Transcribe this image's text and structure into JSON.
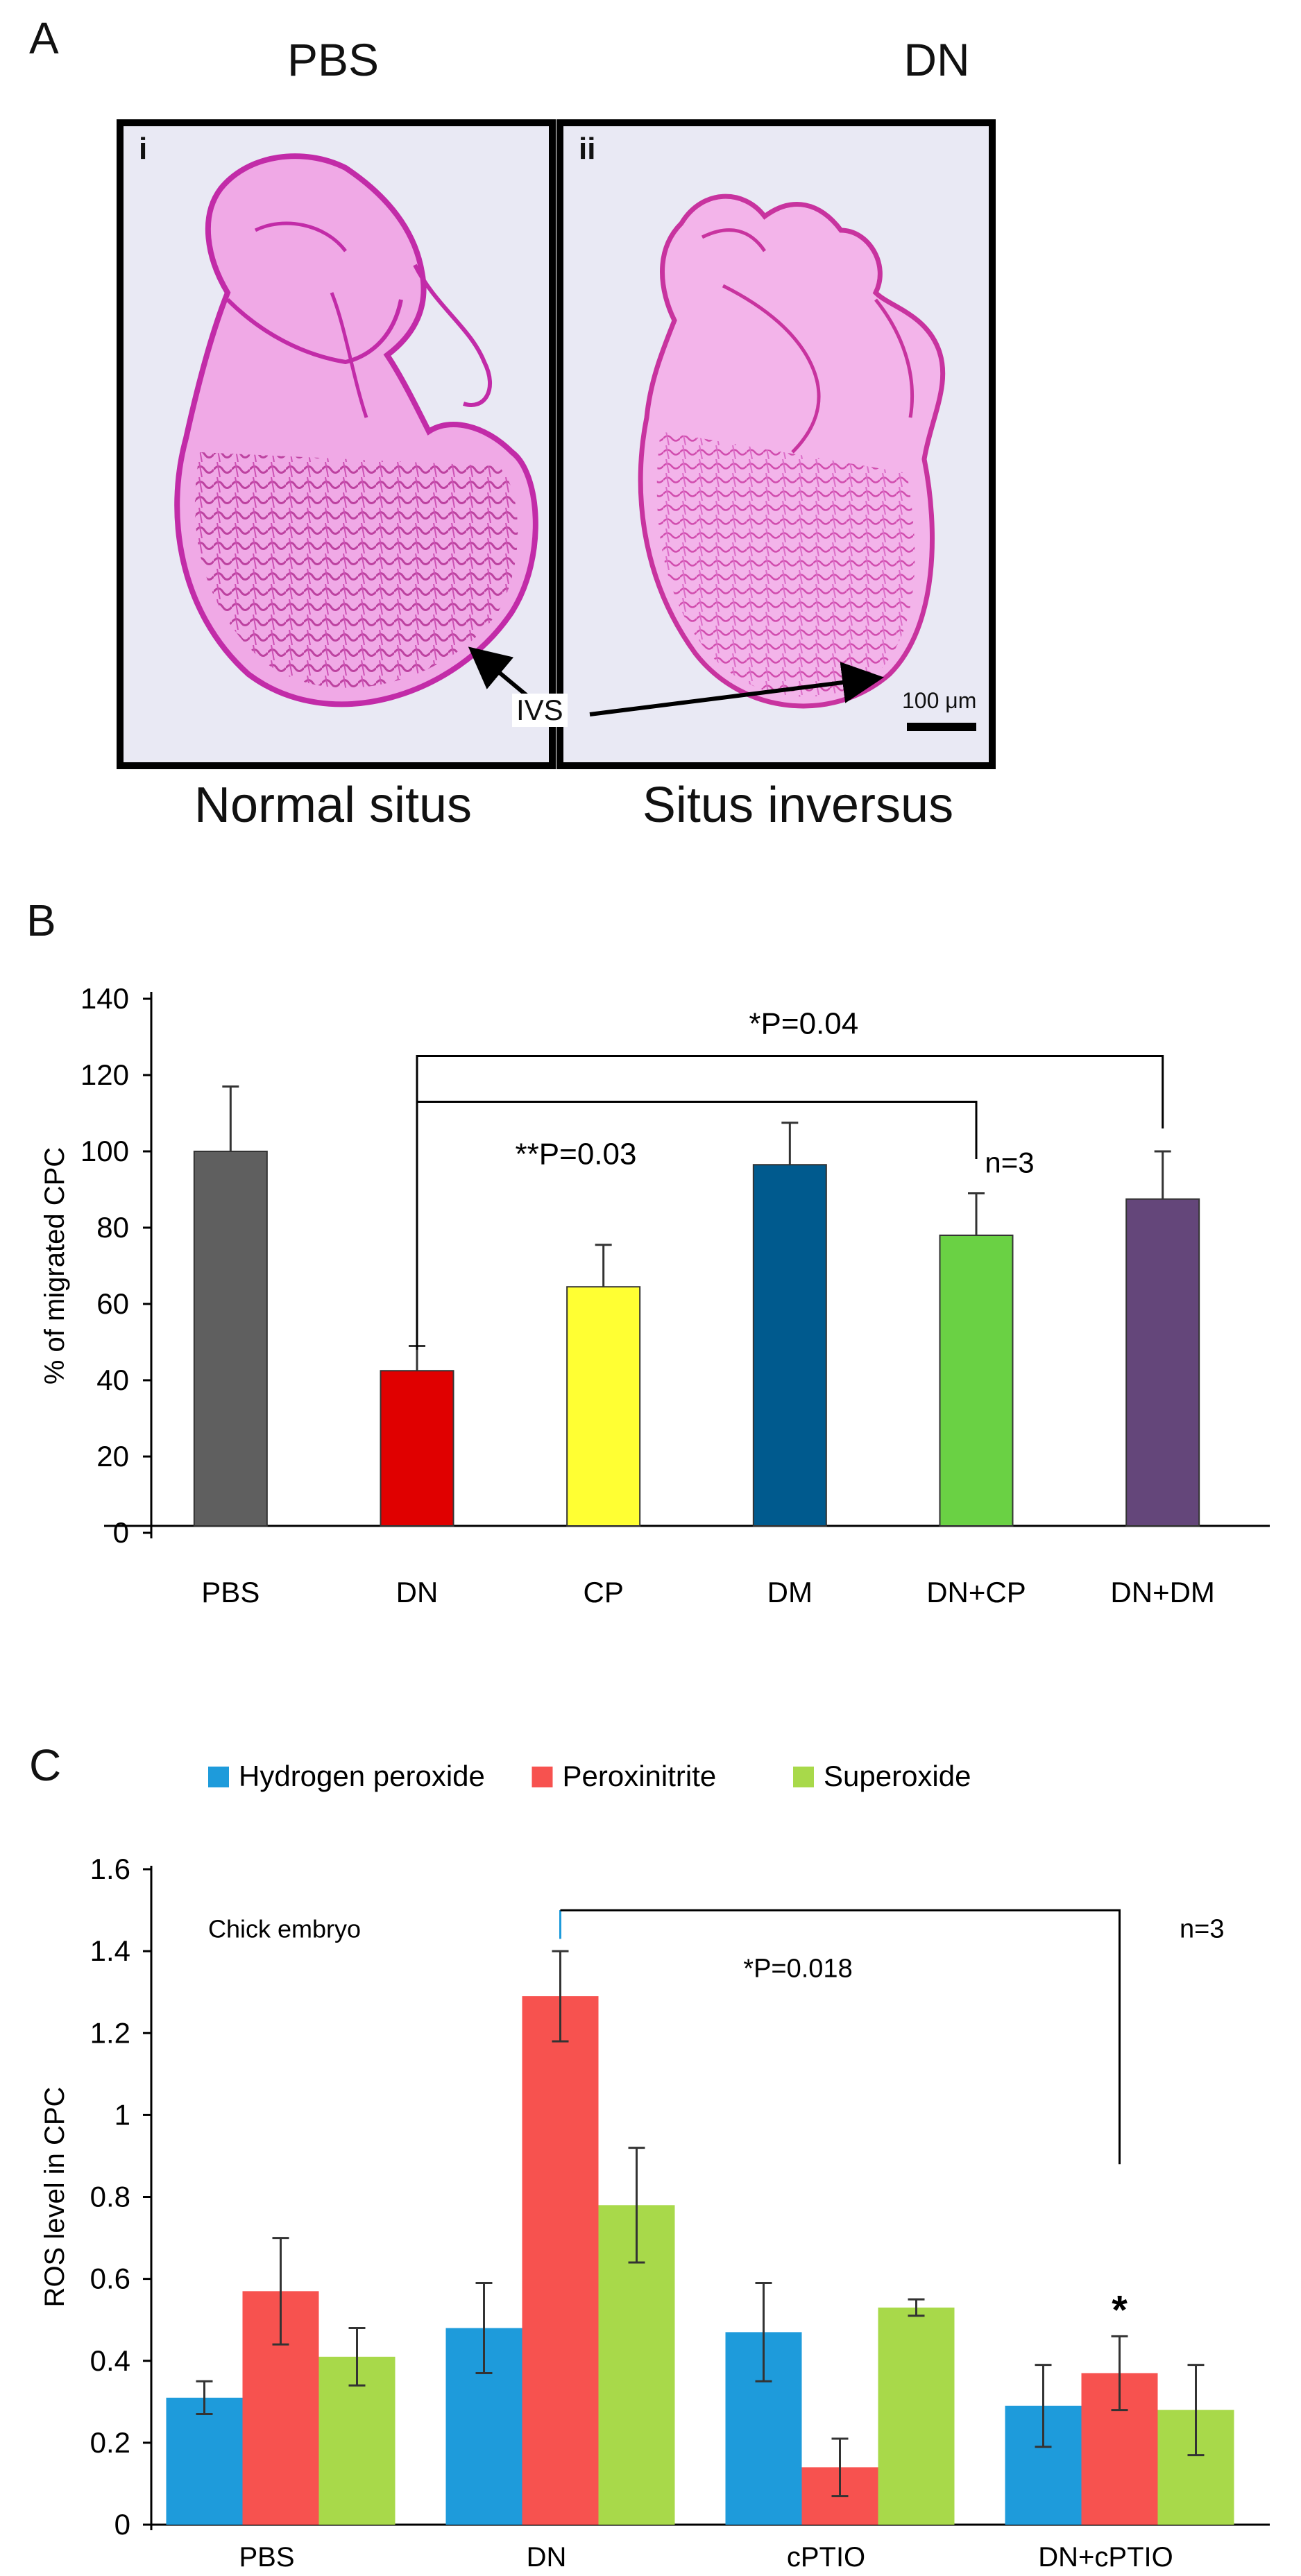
{
  "panel_a": {
    "letter": "A",
    "left_title": "PBS",
    "right_title": "DN",
    "left_roman": "i",
    "right_roman": "ii",
    "left_caption": "Normal situs",
    "right_caption": "Situs inversus",
    "ivs_label": "IVS",
    "scale_label": "100 μm",
    "tissue_color": "#d94fc8",
    "background_color": "#ecebf5"
  },
  "chart_data": [
    {
      "panel": "B",
      "type": "bar",
      "title": "",
      "xlabel": "",
      "ylabel": "% of migrated  CPC",
      "ylim": [
        0,
        140
      ],
      "yticks": [
        0,
        20,
        40,
        60,
        80,
        100,
        120,
        140
      ],
      "categories": [
        "PBS",
        "DN",
        "CP",
        "DM",
        "DN+CP",
        "DN+DM"
      ],
      "values": [
        100,
        42.5,
        64.5,
        96.5,
        78,
        87.5
      ],
      "errors": [
        17,
        6.5,
        11,
        11,
        11,
        12.5
      ],
      "colors": [
        "#5f5f5f",
        "#e00000",
        "#ffff33",
        "#005a8e",
        "#6ad144",
        "#64467a"
      ],
      "annotations": [
        {
          "text": "*P=0.04",
          "from": "DN",
          "to": "DN+DM",
          "level": 125
        },
        {
          "text": "**P=0.03",
          "from": "DN",
          "to": "DN+CP",
          "level": 94
        },
        {
          "text": "n=3"
        }
      ]
    },
    {
      "panel": "C",
      "type": "bar",
      "title": "",
      "xlabel": "",
      "ylabel": "ROS level in CPC",
      "ylim": [
        0,
        1.6
      ],
      "yticks": [
        "0",
        "0.2",
        "0.4",
        "0.6",
        "0.8",
        "1",
        "1.2",
        "1.4",
        "1.6"
      ],
      "categories": [
        "PBS",
        "DN",
        "cPTIO",
        "DN+cPTIO"
      ],
      "series": [
        {
          "name": "Hydrogen peroxide",
          "color": "#1e9bdb",
          "values": [
            0.31,
            0.48,
            0.47,
            0.29
          ],
          "errors": [
            0.04,
            0.11,
            0.12,
            0.1
          ]
        },
        {
          "name": "Peroxinitrite",
          "color": "#f7524f",
          "values": [
            0.57,
            1.29,
            0.14,
            0.37
          ],
          "errors": [
            0.13,
            0.11,
            0.07,
            0.09
          ]
        },
        {
          "name": "Superoxide",
          "color": "#a8d94a",
          "values": [
            0.41,
            0.78,
            0.53,
            0.28
          ],
          "errors": [
            0.07,
            0.14,
            0.02,
            0.11
          ]
        }
      ],
      "annotations": [
        {
          "text": "Chick embryo"
        },
        {
          "text": "*P=0.018",
          "from": "DN",
          "to": "DN+cPTIO",
          "level": 1.5
        },
        {
          "text": "n=3"
        },
        {
          "text": "*",
          "on": "DN+cPTIO",
          "series": "Peroxinitrite"
        }
      ],
      "legend": "top"
    }
  ],
  "panel_labels": {
    "b": "B",
    "c": "C"
  }
}
